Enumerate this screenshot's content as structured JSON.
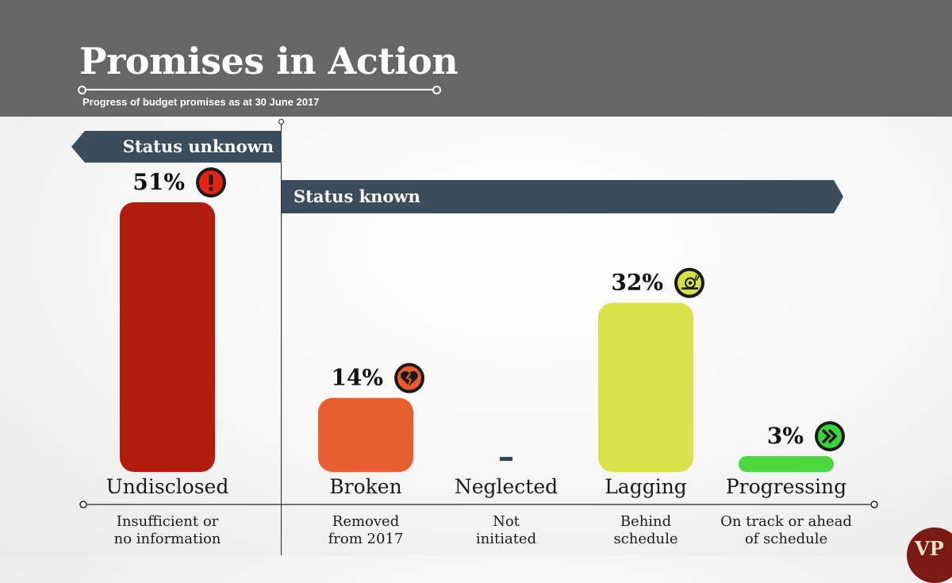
{
  "header": {
    "title": "Promises in Action",
    "subtitle": "Progress of budget promises as at 30 June 2017"
  },
  "banners": {
    "unknown": "Status unknown",
    "known": "Status known"
  },
  "logo_text": "VP",
  "colors": {
    "header_bg": "#666666",
    "banner_bg": "#3b4d5c"
  },
  "chart_data": {
    "type": "bar",
    "title": "Promises in Action",
    "subtitle": "Progress of budget promises as at 30 June 2017",
    "categories": [
      "Undisclosed",
      "Broken",
      "Neglected",
      "Lagging",
      "Progressing"
    ],
    "descriptions": [
      [
        "Insufficient or",
        "no information"
      ],
      [
        "Removed",
        "from 2017"
      ],
      [
        "Not",
        "initiated"
      ],
      [
        "Behind",
        "schedule"
      ],
      [
        "On track or ahead",
        "of schedule"
      ]
    ],
    "values": [
      51,
      14,
      0,
      32,
      3
    ],
    "value_labels": [
      "51%",
      "14%",
      "-",
      "32%",
      "3%"
    ],
    "colors": [
      "#b11c0c",
      "#e85f2f",
      "#2f4656",
      "#d9e14b",
      "#4dd83d"
    ],
    "icons": [
      "exclamation-icon",
      "broken-heart-icon",
      "",
      "snail-icon",
      "double-chevron-right-icon"
    ],
    "icon_colors": [
      "#e42411",
      "#ee5a2a",
      "",
      "#d4e142",
      "#3ad33b"
    ],
    "groups": [
      {
        "label": "Status unknown",
        "categories": [
          "Undisclosed"
        ]
      },
      {
        "label": "Status known",
        "categories": [
          "Broken",
          "Neglected",
          "Lagging",
          "Progressing"
        ]
      }
    ],
    "ylim": [
      0,
      51
    ],
    "grid": false,
    "legend": "none",
    "xlabel": "",
    "ylabel": ""
  }
}
